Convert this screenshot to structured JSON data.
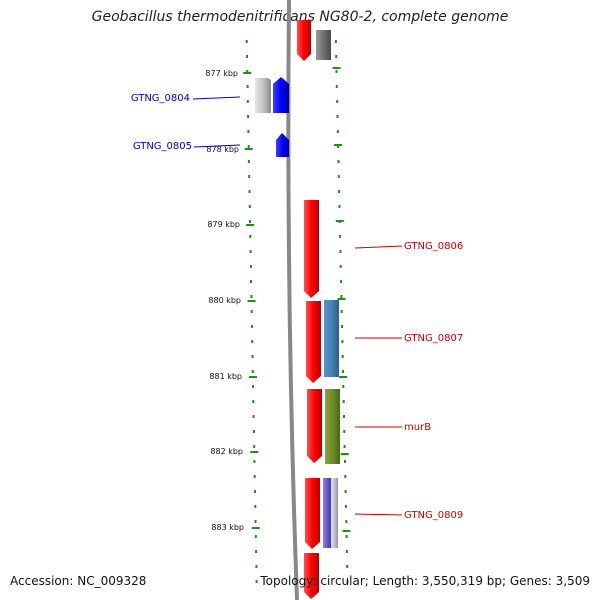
{
  "title": "Geobacillus thermodenitrificans NG80-2, complete genome",
  "accession": "Accession: NC_009328",
  "topology": "Topology: circular; Length: 3,550,319 bp; Genes: 3,509",
  "ticks": [
    {
      "label": "877 kbp",
      "kbp": 877
    },
    {
      "label": "878 kbp",
      "kbp": 878
    },
    {
      "label": "879 kbp",
      "kbp": 879
    },
    {
      "label": "880 kbp",
      "kbp": 880
    },
    {
      "label": "881 kbp",
      "kbp": 881
    },
    {
      "label": "882 kbp",
      "kbp": 882
    },
    {
      "label": "883 kbp",
      "kbp": 883
    }
  ],
  "gene_labels": [
    {
      "text": "GTNG_0804",
      "side": "left",
      "color": "#0000cc"
    },
    {
      "text": "GTNG_0805",
      "side": "left",
      "color": "#0000cc"
    },
    {
      "text": "GTNG_0806",
      "side": "right",
      "color": "#cc0000"
    },
    {
      "text": "GTNG_0807",
      "side": "right",
      "color": "#cc0000"
    },
    {
      "text": "murB",
      "side": "right",
      "color": "#cc0000"
    },
    {
      "text": "GTNG_0809",
      "side": "right",
      "color": "#cc0000"
    }
  ],
  "colors": {
    "forward_strand": "#0000ff",
    "reverse_strand": "#ff0000",
    "backbone": "#888888",
    "tick_marks": "#228b22"
  }
}
